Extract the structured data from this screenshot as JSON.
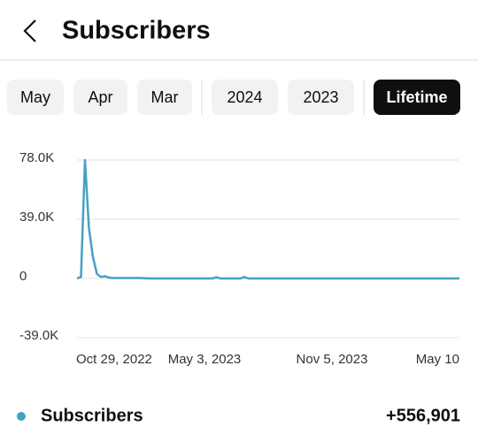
{
  "header": {
    "title": "Subscribers"
  },
  "tabs": {
    "items": [
      "May",
      "Apr",
      "Mar",
      "2024",
      "2023",
      "Lifetime"
    ],
    "selected": 5
  },
  "chart_data": {
    "type": "line",
    "categories": [
      "Oct 29, 2022",
      null,
      null,
      null,
      null,
      null,
      null,
      null,
      null,
      null,
      null,
      null,
      null,
      null,
      null,
      null,
      null,
      null,
      null,
      null,
      null,
      null,
      null,
      null,
      null,
      null,
      null,
      null,
      null,
      null,
      null,
      null,
      "May 3, 2023",
      null,
      null,
      null,
      null,
      null,
      null,
      null,
      null,
      null,
      null,
      null,
      null,
      null,
      null,
      null,
      null,
      null,
      null,
      null,
      null,
      null,
      null,
      null,
      null,
      null,
      null,
      null,
      null,
      null,
      null,
      null,
      "Nov 5, 2023",
      null,
      null,
      null,
      null,
      null,
      null,
      null,
      null,
      null,
      null,
      null,
      null,
      null,
      null,
      null,
      null,
      null,
      null,
      null,
      null,
      null,
      null,
      null,
      null,
      null,
      null,
      null,
      null,
      null,
      null,
      null,
      "May 10"
    ],
    "series": [
      {
        "name": "Subscribers",
        "color": "#45a1c3",
        "values": [
          0,
          1000,
          78000,
          33000,
          14000,
          3000,
          1000,
          1500,
          500,
          300,
          300,
          300,
          300,
          300,
          300,
          300,
          300,
          200,
          0,
          0,
          0,
          0,
          0,
          0,
          0,
          0,
          0,
          0,
          0,
          0,
          0,
          0,
          0,
          0,
          0,
          800,
          0,
          0,
          0,
          0,
          0,
          0,
          1000,
          0,
          0,
          0,
          0,
          0,
          0,
          0,
          0,
          0,
          0,
          0,
          0,
          0,
          0,
          0,
          0,
          0,
          0,
          0,
          0,
          0,
          0,
          0,
          0,
          0,
          0,
          0,
          0,
          0,
          0,
          0,
          0,
          0,
          0,
          0,
          0,
          0,
          0,
          0,
          0,
          0,
          0,
          0,
          0,
          0,
          0,
          0,
          0,
          0,
          0,
          0,
          0,
          0,
          0
        ]
      }
    ],
    "ylim": [
      -39000,
      78000
    ],
    "yticks": [
      {
        "value": -39000,
        "label": "-39.0K"
      },
      0,
      {
        "value": 39000,
        "label": "39.0K"
      },
      {
        "value": 78000,
        "label": "78.0K"
      }
    ],
    "grid": true,
    "total": "+556,901"
  }
}
